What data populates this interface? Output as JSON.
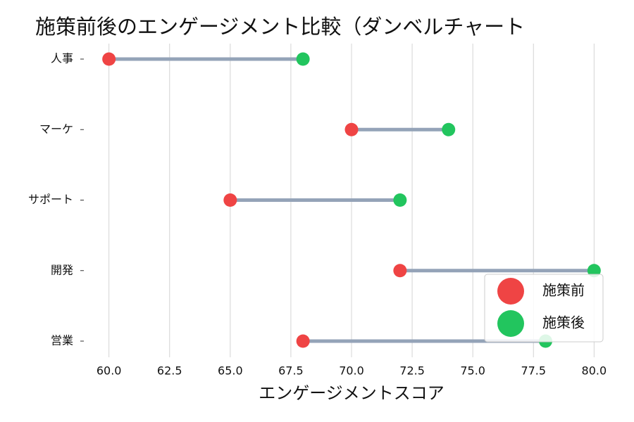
{
  "chart_data": {
    "type": "dumbbell",
    "title": "施策前後のエンゲージメント比較（ダンベルチャート",
    "x_label": "エンゲージメントスコア",
    "categories": [
      "人事",
      "マーケ",
      "サポート",
      "開発",
      "営業"
    ],
    "series": [
      {
        "name": "施策前",
        "color": "#ef4444",
        "values": [
          60,
          70,
          65,
          72,
          68
        ]
      },
      {
        "name": "施策後",
        "color": "#22c55e",
        "values": [
          68,
          74,
          72,
          80,
          78
        ]
      }
    ],
    "connector_color": "#94a3b8",
    "xlim": [
      59.4,
      80.6
    ],
    "xticks": [
      {
        "value": 60,
        "label": "60.0"
      },
      {
        "value": 62.5,
        "label": "62.5"
      },
      {
        "value": 65,
        "label": "65.0"
      },
      {
        "value": 67.5,
        "label": "67.5"
      },
      {
        "value": 70,
        "label": "70.0"
      },
      {
        "value": 72.5,
        "label": "72.5"
      },
      {
        "value": 75,
        "label": "75.0"
      },
      {
        "value": 77.5,
        "label": "77.5"
      },
      {
        "value": 80,
        "label": "80.0"
      }
    ],
    "grid": true,
    "legend": "lower right"
  }
}
